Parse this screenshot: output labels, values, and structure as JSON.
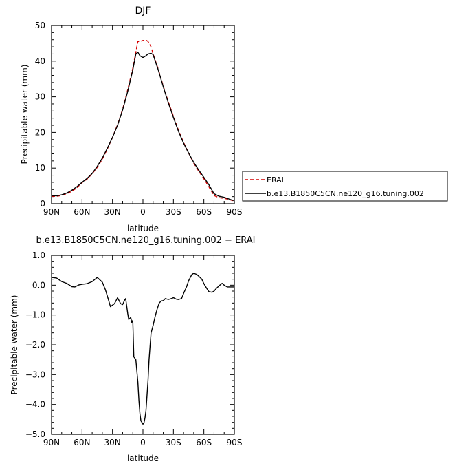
{
  "chart_data": [
    {
      "type": "line",
      "title": "DJF",
      "xlabel": "latitude",
      "ylabel": "Precipitable water (mm)",
      "xlim": [
        90,
        -90
      ],
      "ylim": [
        0,
        50
      ],
      "xticks": [
        90,
        60,
        30,
        0,
        -30,
        -60,
        -90
      ],
      "xtick_labels": [
        "90N",
        "60N",
        "30N",
        "0",
        "30S",
        "60S",
        "90S"
      ],
      "yticks": [
        0,
        10,
        20,
        30,
        40,
        50
      ],
      "ytick_labels": [
        "0",
        "10",
        "20",
        "30",
        "40",
        "50"
      ],
      "grid": false,
      "legend_position": "right",
      "series": [
        {
          "name": "ERAI",
          "color": "#d40000",
          "dash": "dashed",
          "x": [
            90,
            85,
            80,
            75,
            70,
            65,
            60,
            55,
            50,
            45,
            40,
            35,
            30,
            25,
            20,
            15,
            10,
            7,
            5,
            3,
            0,
            -3,
            -5,
            -8,
            -10,
            -15,
            -20,
            -25,
            -30,
            -35,
            -40,
            -45,
            -50,
            -55,
            -60,
            -65,
            -70,
            -75,
            -80,
            -85,
            -88,
            -90
          ],
          "y": [
            2.1,
            2.1,
            2.3,
            2.8,
            3.5,
            4.5,
            5.9,
            6.9,
            8.4,
            10.2,
            12.5,
            15.4,
            18.6,
            22.2,
            26.5,
            32,
            38,
            42.5,
            45.5,
            45.5,
            45.8,
            45.9,
            45.5,
            44,
            42,
            37.8,
            33,
            28.6,
            24.5,
            20.6,
            17.2,
            14.2,
            11.4,
            9.1,
            7,
            4.7,
            2.3,
            1.7,
            1.5,
            1.2,
            0.9,
            0.8
          ]
        },
        {
          "name": "b.e13.B1850C5CN.ne120_g16.tuning.002",
          "color": "#000000",
          "dash": "solid",
          "x": [
            90,
            85,
            80,
            75,
            70,
            65,
            60,
            55,
            50,
            45,
            40,
            35,
            30,
            25,
            20,
            15,
            10,
            7,
            5,
            3,
            0,
            -3,
            -5,
            -8,
            -10,
            -15,
            -20,
            -25,
            -30,
            -35,
            -40,
            -45,
            -50,
            -55,
            -60,
            -65,
            -70,
            -75,
            -80,
            -85,
            -88,
            -90
          ],
          "y": [
            2.3,
            2.2,
            2.5,
            3,
            3.8,
            4.8,
            6,
            7.1,
            8.5,
            10.5,
            12.8,
            15.6,
            18.6,
            22,
            26.3,
            31.5,
            37.5,
            42,
            42.5,
            41.5,
            41,
            41.5,
            42,
            42.2,
            41.8,
            37.6,
            32.8,
            28.3,
            24.2,
            20.3,
            17,
            14.2,
            11.6,
            9.4,
            7.4,
            5.3,
            2.8,
            2.1,
            1.8,
            1.3,
            1,
            0.9
          ]
        }
      ]
    },
    {
      "type": "line",
      "title": "b.e13.B1850C5CN.ne120_g16.tuning.002 − ERAI",
      "xlabel": "latitude",
      "ylabel": "Precipitable water (mm)",
      "xlim": [
        90,
        -90
      ],
      "ylim": [
        -5,
        1
      ],
      "xticks": [
        90,
        60,
        30,
        0,
        -30,
        -60,
        -90
      ],
      "xtick_labels": [
        "90N",
        "60N",
        "30N",
        "0",
        "30S",
        "60S",
        "90S"
      ],
      "yticks": [
        1,
        0,
        -1,
        -2,
        -3,
        -4,
        -5
      ],
      "ytick_labels": [
        "1.0",
        "0.0",
        "−1.0",
        "−2.0",
        "−3.0",
        "−4.0",
        "−5.0"
      ],
      "grid": false,
      "series": [
        {
          "color": "#000000",
          "x": [
            90,
            85,
            80,
            75,
            70,
            67,
            63,
            60,
            55,
            50,
            45,
            40,
            37,
            35,
            32,
            28,
            25,
            22,
            20,
            18,
            17,
            15,
            14,
            12,
            11,
            10,
            9,
            7,
            5,
            4,
            3,
            2,
            1,
            0,
            -1,
            -2,
            -3,
            -4,
            -5,
            -6,
            -8,
            -10,
            -12,
            -14,
            -16,
            -18,
            -20,
            -22,
            -25,
            -28,
            -30,
            -33,
            -35,
            -38,
            -40,
            -43,
            -45,
            -48,
            -50,
            -53,
            -55,
            -58,
            -60,
            -63,
            -65,
            -68,
            -70,
            -72,
            -75,
            -78,
            -80,
            -83,
            -85,
            -88,
            -90
          ],
          "y": [
            0.26,
            0.24,
            0.12,
            0.06,
            -0.05,
            -0.06,
            0.01,
            0.03,
            0.05,
            0.12,
            0.26,
            0.1,
            -0.15,
            -0.37,
            -0.72,
            -0.62,
            -0.42,
            -0.62,
            -0.65,
            -0.5,
            -0.45,
            -0.95,
            -1.15,
            -1.08,
            -1.25,
            -1.18,
            -2.4,
            -2.5,
            -3.25,
            -3.85,
            -4.3,
            -4.55,
            -4.6,
            -4.66,
            -4.62,
            -4.45,
            -4.2,
            -3.7,
            -3.2,
            -2.5,
            -1.6,
            -1.35,
            -1.05,
            -0.8,
            -0.6,
            -0.53,
            -0.52,
            -0.45,
            -0.48,
            -0.45,
            -0.42,
            -0.47,
            -0.48,
            -0.45,
            -0.28,
            -0.05,
            0.15,
            0.35,
            0.4,
            0.36,
            0.3,
            0.2,
            0.05,
            -0.12,
            -0.22,
            -0.24,
            -0.2,
            -0.12,
            -0.02,
            0.06,
            0.0,
            -0.06,
            -0.06,
            -0.06,
            -0.06
          ]
        }
      ]
    }
  ]
}
